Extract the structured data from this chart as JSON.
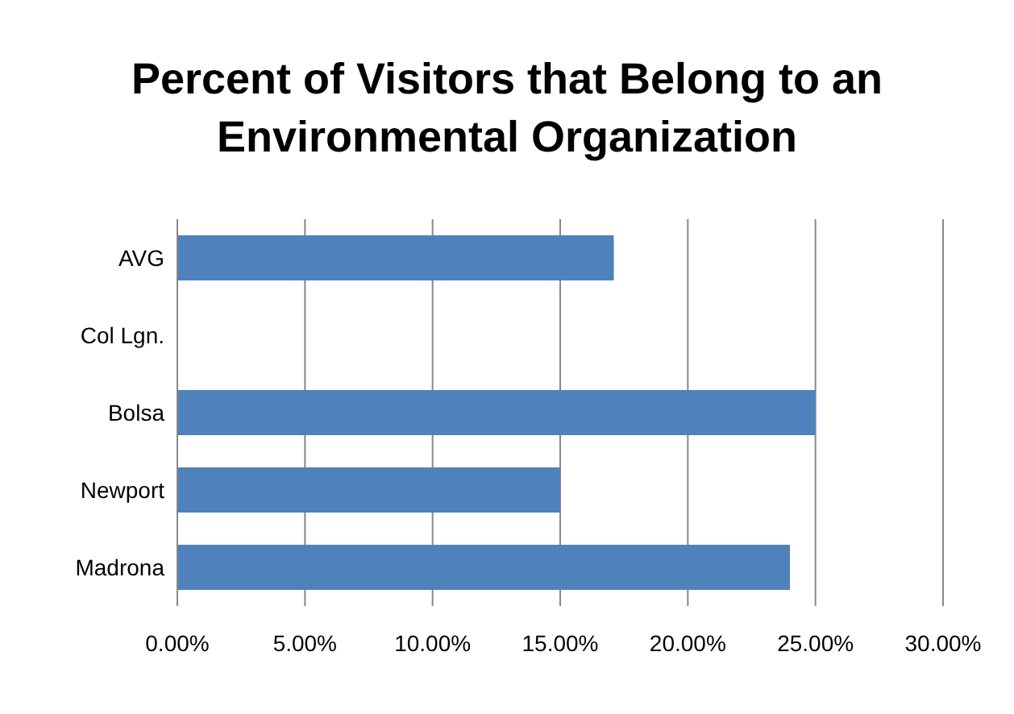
{
  "chart_data": {
    "type": "bar",
    "orientation": "horizontal",
    "title": "Percent of Visitors that Belong to an Environmental Organization",
    "categories": [
      "AVG",
      "Col Lgn.",
      "Bolsa",
      "Newport",
      "Madrona"
    ],
    "values": [
      17.1,
      null,
      25,
      15,
      24
    ],
    "color": "#4f81bd",
    "xlim": [
      0,
      30
    ],
    "xticks": [
      {
        "value": 0,
        "label": "0.00%"
      },
      {
        "value": 5,
        "label": "5.00%"
      },
      {
        "value": 10,
        "label": "10.00%"
      },
      {
        "value": 15,
        "label": "15.00%"
      },
      {
        "value": 20,
        "label": "20.00%"
      },
      {
        "value": 25,
        "label": "25.00%"
      },
      {
        "value": 30,
        "label": "30.00%"
      }
    ],
    "grid": "x",
    "legend": false
  }
}
